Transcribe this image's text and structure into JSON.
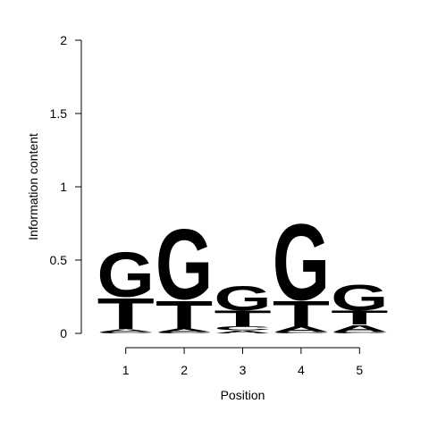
{
  "chart_data": {
    "type": "sequence-logo",
    "xlabel": "Position",
    "ylabel": "Information content",
    "ylim": [
      0,
      2
    ],
    "y_ticks": [
      "0",
      "0.5",
      "1",
      "1.5",
      "2"
    ],
    "positions": [
      "1",
      "2",
      "3",
      "4",
      "5"
    ],
    "colors": {
      "A": "#00cc00",
      "C": "#0000ff",
      "G": "#ff9900",
      "T": "#ff0000"
    },
    "columns": [
      {
        "position": "1",
        "letters": [
          {
            "letter": "C",
            "height": 0.01
          },
          {
            "letter": "A",
            "height": 0.02
          },
          {
            "letter": "T",
            "height": 0.22
          },
          {
            "letter": "G",
            "height": 0.32
          }
        ]
      },
      {
        "position": "2",
        "letters": [
          {
            "letter": "C",
            "height": 0.01
          },
          {
            "letter": "A",
            "height": 0.025
          },
          {
            "letter": "T",
            "height": 0.2
          },
          {
            "letter": "G",
            "height": 0.5
          }
        ]
      },
      {
        "position": "3",
        "letters": [
          {
            "letter": "A",
            "height": 0.02
          },
          {
            "letter": "C",
            "height": 0.03
          },
          {
            "letter": "T",
            "height": 0.11
          },
          {
            "letter": "G",
            "height": 0.175
          }
        ]
      },
      {
        "position": "4",
        "letters": [
          {
            "letter": "C",
            "height": 0.01
          },
          {
            "letter": "A",
            "height": 0.04
          },
          {
            "letter": "T",
            "height": 0.18
          },
          {
            "letter": "G",
            "height": 0.54
          }
        ]
      },
      {
        "position": "5",
        "letters": [
          {
            "letter": "C",
            "height": 0.01
          },
          {
            "letter": "A",
            "height": 0.05
          },
          {
            "letter": "T",
            "height": 0.1
          },
          {
            "letter": "G",
            "height": 0.18
          }
        ]
      }
    ]
  }
}
